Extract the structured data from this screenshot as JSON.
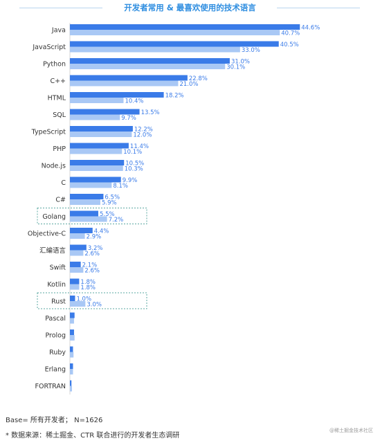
{
  "chart_data": {
    "type": "bar",
    "title": "开发者常用 & 最喜欢使用的技术语言",
    "categories": [
      "Java",
      "JavaScript",
      "Python",
      "C++",
      "HTML",
      "SQL",
      "TypeScript",
      "PHP",
      "Node.js",
      "C",
      "C#",
      "Golang",
      "Objective-C",
      "汇编语言",
      "Swift",
      "Kotlin",
      "Rust",
      "Pascal",
      "Prolog",
      "Ruby",
      "Erlang",
      "FORTRAN"
    ],
    "series": [
      {
        "values": [
          44.6,
          40.5,
          31.0,
          22.8,
          18.2,
          13.5,
          12.2,
          11.4,
          10.5,
          9.9,
          6.5,
          5.5,
          4.4,
          3.2,
          2.1,
          1.8,
          1.0,
          0.9,
          0.8,
          0.6,
          0.6,
          0.3
        ],
        "labels": [
          "44.6%",
          "40.5%",
          "31.0%",
          "22.8%",
          "18.2%",
          "13.5%",
          "12.2%",
          "11.4%",
          "10.5%",
          "9.9%",
          "6.5%",
          "5.5%",
          "4.4%",
          "3.2%",
          "2.1%",
          "1.8%",
          "1.0%",
          "",
          "",
          "",
          "",
          ""
        ],
        "color": "#3a7be8"
      },
      {
        "values": [
          40.7,
          33.0,
          30.1,
          21.0,
          10.4,
          9.7,
          12.0,
          10.1,
          10.3,
          8.1,
          5.9,
          7.2,
          2.9,
          2.6,
          2.6,
          1.8,
          3.0,
          0.8,
          0.9,
          0.7,
          0.6,
          0.4
        ],
        "labels": [
          "40.7%",
          "33.0%",
          "30.1%",
          "21.0%",
          "10.4%",
          "9.7%",
          "12.0%",
          "10.1%",
          "10.3%",
          "8.1%",
          "5.9%",
          "7.2%",
          "2.9%",
          "2.6%",
          "2.6%",
          "1.8%",
          "3.0%",
          "",
          "",
          "",
          "",
          ""
        ],
        "color": "#a9c8f5"
      }
    ],
    "highlighted": [
      "Golang",
      "Rust"
    ],
    "xlim": [
      0,
      50
    ],
    "grid": false,
    "legend": "none"
  },
  "footer": {
    "base": "Base= 所有开发者； N=1626",
    "source": "* 数据来源：稀土掘金、CTR 联合进行的开发者生态调研"
  },
  "watermark": "@稀土掘金技术社区",
  "colors": {
    "title": "#2f8ee0",
    "highlight_border": "#5aa7a0",
    "label": "#3a7be8"
  }
}
